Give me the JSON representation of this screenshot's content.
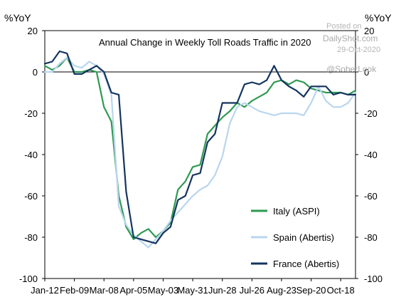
{
  "chart_data": {
    "type": "line",
    "title": "Annual Change in Weekly Toll Roads Traffic in 2020",
    "left_axis_unit": "%YoY",
    "right_axis_unit": "%YoY",
    "ylim": [
      -100,
      20
    ],
    "y_ticks": [
      "20",
      "0",
      "-20",
      "-40",
      "-60",
      "-80",
      "-100"
    ],
    "x_ticks": [
      "Jan-12",
      "Feb-09",
      "Mar-08",
      "Apr-05",
      "May-03",
      "May-31",
      "Jun-28",
      "Jul-26",
      "Aug-23",
      "Sep-20",
      "Oct-18"
    ],
    "legend_position": "bottom-right",
    "watermark": {
      "posted_on": "Posted on",
      "site": "DailyShot.com",
      "date": "29-Oct-2020",
      "handle": "@SoberLook"
    },
    "series": [
      {
        "name": "Italy (ASPI)",
        "color": "#2e9a52",
        "values": [
          [
            1,
            3
          ],
          [
            2,
            1
          ],
          [
            3,
            3
          ],
          [
            4,
            7
          ],
          [
            5,
            0
          ],
          [
            6,
            0
          ],
          [
            7,
            1
          ],
          [
            8,
            0
          ],
          [
            9,
            -17
          ],
          [
            10,
            -24
          ],
          [
            11,
            -60
          ],
          [
            12,
            -75
          ],
          [
            13,
            -81
          ],
          [
            14,
            -78
          ],
          [
            15,
            -76
          ],
          [
            16,
            -80
          ],
          [
            17,
            -77
          ],
          [
            18,
            -73
          ],
          [
            19,
            -57
          ],
          [
            20,
            -53
          ],
          [
            21,
            -46
          ],
          [
            22,
            -45
          ],
          [
            23,
            -30
          ],
          [
            24,
            -26
          ],
          [
            25,
            -22
          ],
          [
            26,
            -19
          ],
          [
            27,
            -15
          ],
          [
            28,
            -17
          ],
          [
            29,
            -14
          ],
          [
            30,
            -12
          ],
          [
            31,
            -10
          ],
          [
            32,
            -5
          ],
          [
            33,
            -4
          ],
          [
            34,
            -6
          ],
          [
            35,
            -4
          ],
          [
            36,
            -5
          ],
          [
            37,
            -8
          ],
          [
            38,
            -9
          ],
          [
            39,
            -10
          ],
          [
            40,
            -10
          ],
          [
            41,
            -10
          ],
          [
            42,
            -11
          ],
          [
            43,
            -9
          ]
        ]
      },
      {
        "name": "Spain (Abertis)",
        "color": "#b9d6ee",
        "values": [
          [
            1,
            0
          ],
          [
            2,
            0
          ],
          [
            3,
            4
          ],
          [
            4,
            7
          ],
          [
            5,
            3
          ],
          [
            6,
            2
          ],
          [
            7,
            5
          ],
          [
            8,
            3
          ],
          [
            9,
            -1
          ],
          [
            10,
            -11
          ],
          [
            11,
            -65
          ],
          [
            12,
            -74
          ],
          [
            13,
            -79
          ],
          [
            14,
            -82
          ],
          [
            15,
            -85
          ],
          [
            16,
            -81
          ],
          [
            17,
            -77
          ],
          [
            18,
            -72
          ],
          [
            19,
            -68
          ],
          [
            20,
            -64
          ],
          [
            21,
            -60
          ],
          [
            22,
            -57
          ],
          [
            23,
            -55
          ],
          [
            24,
            -50
          ],
          [
            25,
            -41
          ],
          [
            26,
            -25
          ],
          [
            27,
            -17
          ],
          [
            28,
            -15
          ],
          [
            29,
            -17
          ],
          [
            30,
            -19
          ],
          [
            31,
            -20
          ],
          [
            32,
            -21
          ],
          [
            33,
            -20
          ],
          [
            34,
            -20
          ],
          [
            35,
            -20
          ],
          [
            36,
            -21
          ],
          [
            37,
            -15
          ],
          [
            38,
            -7
          ],
          [
            39,
            -14
          ],
          [
            40,
            -17
          ],
          [
            41,
            -17
          ],
          [
            42,
            -15
          ],
          [
            43,
            -10
          ]
        ]
      },
      {
        "name": "France (Abertis)",
        "color": "#14345f",
        "values": [
          [
            1,
            4
          ],
          [
            2,
            5
          ],
          [
            3,
            10
          ],
          [
            4,
            9
          ],
          [
            5,
            -1
          ],
          [
            6,
            -1
          ],
          [
            7,
            1
          ],
          [
            8,
            3
          ],
          [
            9,
            0
          ],
          [
            10,
            -10
          ],
          [
            11,
            -11
          ],
          [
            12,
            -58
          ],
          [
            13,
            -80
          ],
          [
            14,
            -81
          ],
          [
            15,
            -82
          ],
          [
            16,
            -83
          ],
          [
            17,
            -78
          ],
          [
            18,
            -75
          ],
          [
            19,
            -62
          ],
          [
            20,
            -60
          ],
          [
            21,
            -50
          ],
          [
            22,
            -49
          ],
          [
            23,
            -34
          ],
          [
            24,
            -30
          ],
          [
            25,
            -15
          ],
          [
            26,
            -15
          ],
          [
            27,
            -15
          ],
          [
            28,
            -6
          ],
          [
            29,
            -5
          ],
          [
            30,
            -6
          ],
          [
            31,
            -4
          ],
          [
            32,
            3
          ],
          [
            33,
            -4
          ],
          [
            34,
            -7
          ],
          [
            35,
            -9
          ],
          [
            36,
            -12
          ],
          [
            37,
            -7
          ],
          [
            38,
            -7
          ],
          [
            39,
            -7
          ],
          [
            40,
            -11
          ],
          [
            41,
            -10
          ],
          [
            42,
            -11
          ],
          [
            43,
            -11
          ]
        ]
      }
    ]
  }
}
